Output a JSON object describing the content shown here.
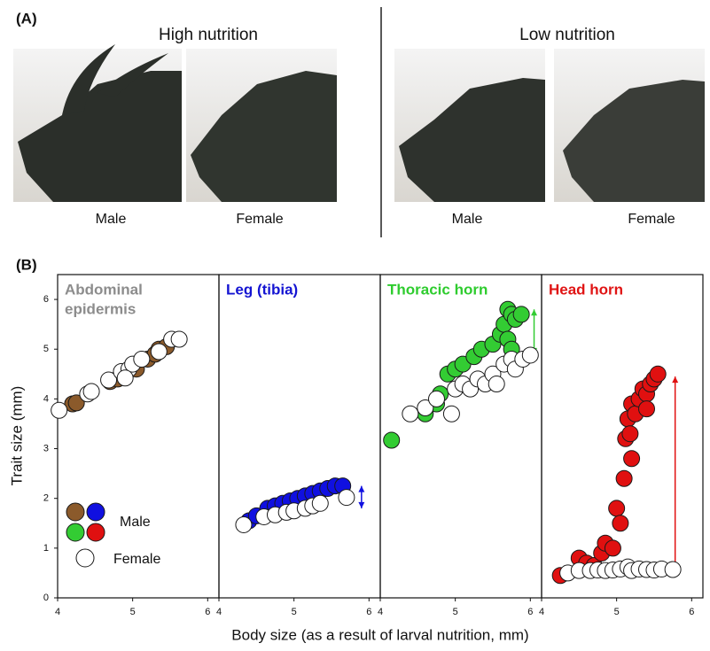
{
  "panel_a": {
    "label": "(A)",
    "groups": [
      {
        "title": "High nutrition",
        "photos": [
          "Male",
          "Female"
        ]
      },
      {
        "title": "Low nutrition",
        "photos": [
          "Male",
          "Female"
        ]
      }
    ]
  },
  "panel_b": {
    "label": "(B)",
    "y_label": "Trait size (mm)",
    "x_label": "Body size (as a result of larval nutrition, mm)"
  },
  "chart_data": [
    {
      "type": "scatter",
      "title": [
        "Abdominal",
        "epidermis"
      ],
      "title_color": "#8c8c8c",
      "legend": "lower left",
      "xlim": [
        4,
        6.15
      ],
      "xticks": [
        4,
        5,
        6
      ],
      "ylim": [
        0,
        6.5
      ],
      "yticks": [
        0,
        1,
        2,
        3,
        4,
        5,
        6
      ],
      "series": [
        {
          "name": "Male",
          "color": "#8b5a2b",
          "x": [
            4.2,
            4.25,
            4.7,
            4.8,
            4.9,
            5.05,
            5.2,
            5.3,
            5.35,
            5.45
          ],
          "values": [
            3.9,
            3.92,
            4.35,
            4.4,
            4.5,
            4.6,
            4.8,
            4.9,
            5.0,
            5.05
          ]
        },
        {
          "name": "Female",
          "color": "#ffffff",
          "x": [
            4.02,
            4.4,
            4.45,
            4.68,
            4.85,
            4.95,
            5.0,
            4.9,
            5.12,
            5.35,
            5.52,
            5.62
          ],
          "values": [
            3.77,
            4.1,
            4.15,
            4.38,
            4.55,
            4.6,
            4.7,
            4.42,
            4.8,
            4.95,
            5.2,
            5.2
          ]
        }
      ]
    },
    {
      "type": "scatter",
      "title": [
        "Leg (tibia)"
      ],
      "title_color": "#1414d2",
      "xlim": [
        4,
        6.15
      ],
      "xticks": [
        4,
        5,
        6
      ],
      "ylim": [
        0,
        6.5
      ],
      "range_arrow": {
        "x": 5.9,
        "y": [
          1.8,
          2.25
        ]
      },
      "series": [
        {
          "name": "Male",
          "color": "#1010e0",
          "x": [
            4.4,
            4.5,
            4.65,
            4.75,
            4.85,
            4.95,
            5.05,
            5.15,
            5.25,
            5.35,
            5.45,
            5.55,
            5.65
          ],
          "values": [
            1.55,
            1.65,
            1.8,
            1.85,
            1.9,
            1.95,
            2.0,
            2.05,
            2.1,
            2.15,
            2.2,
            2.25,
            2.25
          ]
        },
        {
          "name": "Female",
          "color": "#ffffff",
          "x": [
            4.33,
            4.6,
            4.75,
            4.9,
            5.0,
            5.15,
            5.25,
            5.35,
            5.7
          ],
          "values": [
            1.47,
            1.63,
            1.67,
            1.72,
            1.75,
            1.8,
            1.85,
            1.9,
            2.02
          ]
        }
      ]
    },
    {
      "type": "scatter",
      "title": [
        "Thoracic horn"
      ],
      "title_color": "#2ecc2e",
      "xlim": [
        4,
        6.15
      ],
      "xticks": [
        4,
        5,
        6
      ],
      "ylim": [
        0,
        6.5
      ],
      "range_arrow": {
        "x": 6.05,
        "y": [
          4.9,
          5.8
        ]
      },
      "series": [
        {
          "name": "Male",
          "color": "#33cc33",
          "x": [
            4.15,
            4.6,
            4.75,
            4.8,
            4.9,
            5.0,
            5.1,
            5.25,
            5.35,
            5.5,
            5.6,
            5.65,
            5.7,
            5.75,
            5.8,
            5.88,
            5.7,
            5.75
          ],
          "values": [
            3.17,
            3.7,
            3.9,
            4.1,
            4.5,
            4.6,
            4.7,
            4.85,
            5.0,
            5.1,
            5.3,
            5.5,
            5.8,
            5.7,
            5.6,
            5.7,
            5.2,
            5.0
          ]
        },
        {
          "name": "Female",
          "color": "#ffffff",
          "x": [
            4.4,
            4.6,
            4.75,
            4.95,
            5.0,
            5.1,
            5.2,
            5.3,
            5.4,
            5.5,
            5.55,
            5.65,
            5.75,
            5.8,
            5.9,
            6.0
          ],
          "values": [
            3.7,
            3.82,
            4.0,
            3.7,
            4.2,
            4.3,
            4.2,
            4.4,
            4.3,
            4.5,
            4.3,
            4.7,
            4.8,
            4.6,
            4.8,
            4.88
          ]
        }
      ]
    },
    {
      "type": "scatter",
      "title": [
        "Head horn"
      ],
      "title_color": "#e01414",
      "xlim": [
        4,
        6.15
      ],
      "xticks": [
        4,
        5,
        6
      ],
      "ylim": [
        0,
        6.5
      ],
      "range_arrow": {
        "x": 5.78,
        "y": [
          0.55,
          4.45
        ]
      },
      "series": [
        {
          "name": "Male",
          "color": "#e01010",
          "x": [
            4.25,
            4.5,
            4.6,
            4.7,
            4.8,
            4.85,
            4.95,
            5.0,
            5.05,
            5.1,
            5.12,
            5.15,
            5.2,
            5.25,
            5.3,
            5.35,
            5.4,
            5.45,
            5.5,
            5.55,
            5.2,
            5.18,
            5.4
          ],
          "values": [
            0.45,
            0.8,
            0.7,
            0.65,
            0.9,
            1.1,
            1.0,
            1.8,
            1.5,
            2.4,
            3.2,
            3.6,
            3.9,
            3.7,
            4.0,
            4.2,
            4.1,
            4.3,
            4.4,
            4.5,
            2.8,
            3.3,
            3.8
          ]
        },
        {
          "name": "Female",
          "color": "#ffffff",
          "x": [
            4.35,
            4.5,
            4.65,
            4.75,
            4.85,
            4.95,
            5.05,
            5.15,
            5.2,
            5.3,
            5.4,
            5.5,
            5.6,
            5.75
          ],
          "values": [
            0.5,
            0.55,
            0.55,
            0.56,
            0.55,
            0.56,
            0.58,
            0.62,
            0.55,
            0.58,
            0.57,
            0.56,
            0.58,
            0.57
          ]
        }
      ]
    }
  ]
}
